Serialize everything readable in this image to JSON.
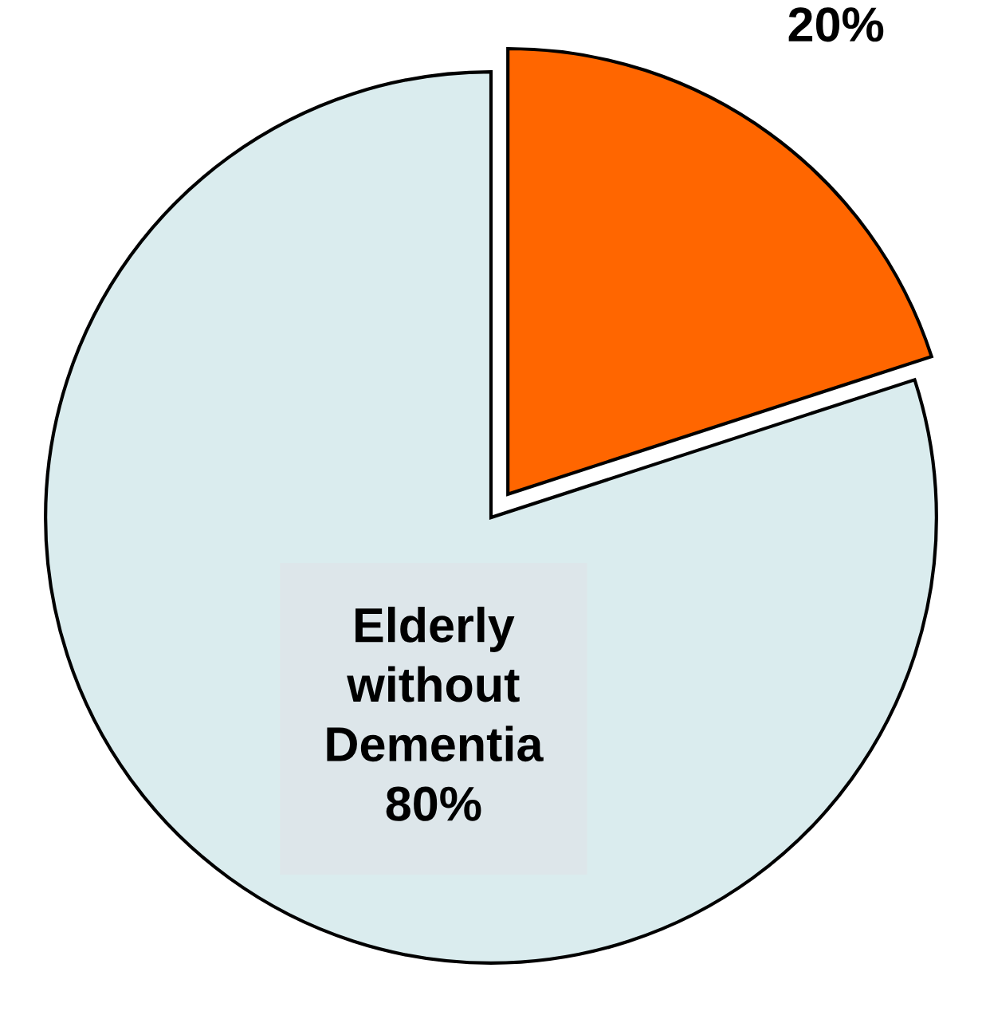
{
  "chart_data": {
    "type": "pie",
    "categories": [
      null,
      "Elderly without Dementia"
    ],
    "values": [
      20,
      80
    ],
    "value_labels": [
      "20%",
      "80%"
    ],
    "colors": [
      "#ff6600",
      "#daecee"
    ]
  }
}
